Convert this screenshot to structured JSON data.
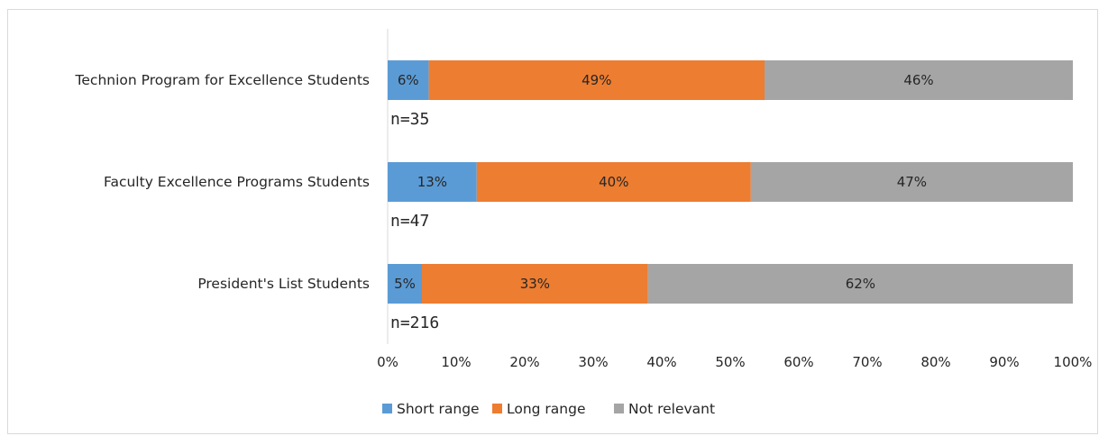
{
  "chart_data": {
    "type": "bar",
    "orientation": "horizontal",
    "stacked": true,
    "categories": [
      "Technion Program for Excellence Students",
      "Faculty Excellence Programs Students",
      "President's List Students"
    ],
    "sample_sizes": [
      "n=35",
      "n=47",
      "n=216"
    ],
    "series": [
      {
        "name": "Short range",
        "color": "#5b9bd5",
        "values": [
          6,
          13,
          5
        ],
        "labels": [
          "6%",
          "13%",
          "5%"
        ]
      },
      {
        "name": "Long range",
        "color": "#ed7d31",
        "values": [
          49,
          40,
          33
        ],
        "labels": [
          "49%",
          "40%",
          "33%"
        ]
      },
      {
        "name": "Not relevant",
        "color": "#a5a5a5",
        "values": [
          46,
          47,
          62
        ],
        "labels": [
          "46%",
          "47%",
          "62%"
        ]
      }
    ],
    "xlim": [
      0,
      100
    ],
    "x_ticks": [
      "0%",
      "10%",
      "20%",
      "30%",
      "40%",
      "50%",
      "60%",
      "70%",
      "80%",
      "90%",
      "100%"
    ],
    "grid": false,
    "legend_position": "bottom"
  }
}
